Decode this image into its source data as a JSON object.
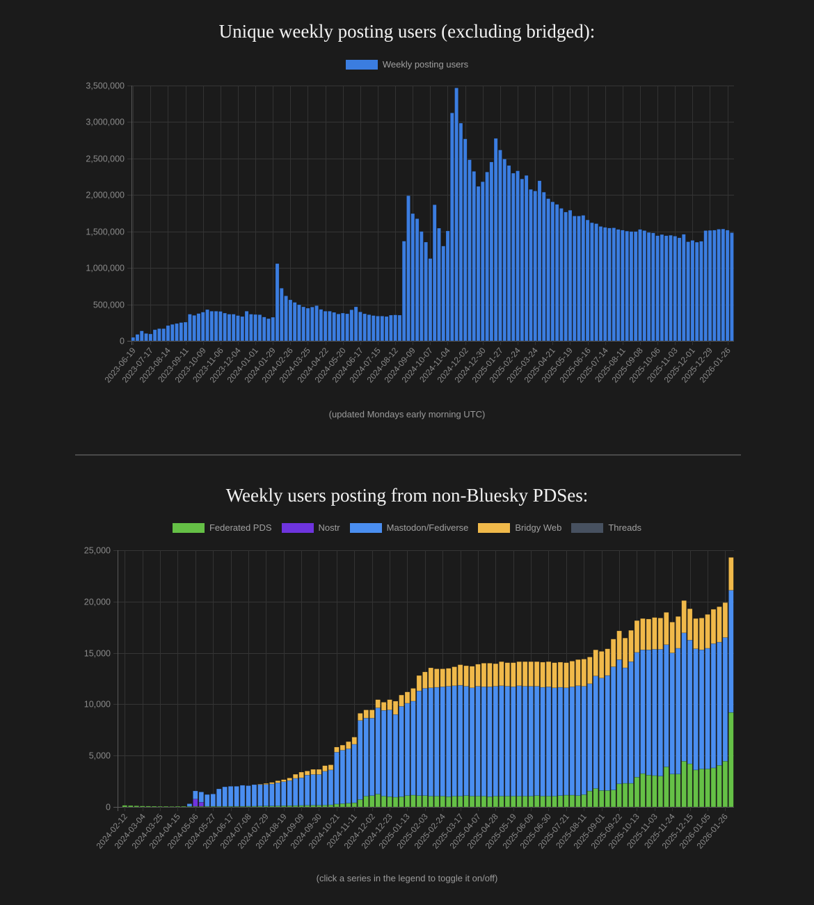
{
  "chart_data": [
    {
      "type": "bar",
      "title": "Unique weekly posting users (excluding bridged):",
      "caption": "(updated Mondays early morning UTC)",
      "xlabel": "",
      "ylabel": "",
      "ylim": [
        0,
        3500000
      ],
      "yticks": [
        "0",
        "500,000",
        "1,000,000",
        "1,500,000",
        "2,000,000",
        "2,500,000",
        "3,000,000",
        "3,500,000"
      ],
      "ytick_values": [
        0,
        500000,
        1000000,
        1500000,
        2000000,
        2500000,
        3000000,
        3500000
      ],
      "grid": true,
      "legend_position": "top-center",
      "x_start": "2023-06-19",
      "x_step_weeks": 1,
      "x_tick_every": 4,
      "xtick_labels": [
        "2023-06-19",
        "2023-07-17",
        "2023-08-14",
        "2023-09-11",
        "2023-10-09",
        "2023-11-06",
        "2023-12-04",
        "2024-01-01",
        "2024-01-29",
        "2024-02-26",
        "2024-03-25",
        "2024-04-22",
        "2024-05-20",
        "2024-06-17",
        "2024-07-15",
        "2024-08-12",
        "2024-09-09",
        "2024-10-07",
        "2024-11-04",
        "2024-12-02",
        "2024-12-30",
        "2025-01-27",
        "2025-02-24",
        "2025-03-24",
        "2025-04-21",
        "2025-05-19",
        "2025-06-16",
        "2025-07-14",
        "2025-08-11",
        "2025-09-08",
        "2025-10-06",
        "2025-11-03",
        "2025-12-01",
        "2025-12-29",
        "2026-01-26"
      ],
      "series": [
        {
          "name": "Weekly posting users",
          "color": "#3b7de0",
          "values": [
            48000,
            89000,
            137000,
            102000,
            95000,
            153000,
            168000,
            168000,
            210000,
            226000,
            238000,
            251000,
            257000,
            366000,
            350000,
            375000,
            394000,
            429000,
            407000,
            407000,
            404000,
            381000,
            366000,
            366000,
            347000,
            334000,
            407000,
            366000,
            362000,
            359000,
            327000,
            305000,
            324000,
            1059000,
            722000,
            617000,
            563000,
            528000,
            496000,
            467000,
            448000,
            464000,
            483000,
            432000,
            407000,
            407000,
            391000,
            369000,
            381000,
            372000,
            426000,
            467000,
            397000,
            372000,
            359000,
            347000,
            340000,
            340000,
            334000,
            353000,
            356000,
            353000,
            1367000,
            1990000,
            1745000,
            1675000,
            1500000,
            1354000,
            1129000,
            1866000,
            1545000,
            1300000,
            1507000,
            3125000,
            3468000,
            2985000,
            2769000,
            2483000,
            2324000,
            2118000,
            2182000,
            2315000,
            2452000,
            2776000,
            2617000,
            2493000,
            2404000,
            2299000,
            2331000,
            2220000,
            2268000,
            2077000,
            2055000,
            2195000,
            2039000,
            1950000,
            1906000,
            1871000,
            1817000,
            1766000,
            1791000,
            1712000,
            1712000,
            1721000,
            1658000,
            1620000,
            1607000,
            1569000,
            1556000,
            1547000,
            1550000,
            1528000,
            1518000,
            1505000,
            1499000,
            1499000,
            1528000,
            1512000,
            1486000,
            1480000,
            1442000,
            1458000,
            1442000,
            1448000,
            1436000,
            1413000,
            1461000,
            1359000,
            1378000,
            1353000,
            1365000,
            1512000,
            1515000,
            1518000,
            1531000,
            1534000,
            1518000,
            1483000
          ]
        }
      ]
    },
    {
      "type": "bar",
      "stacked": true,
      "title": "Weekly users posting from non-Bluesky PDSes:",
      "caption": "(click a series in the legend to toggle it on/off)",
      "xlabel": "",
      "ylabel": "",
      "ylim": [
        0,
        25000
      ],
      "yticks": [
        "0",
        "5,000",
        "10,000",
        "15,000",
        "20,000",
        "25,000"
      ],
      "ytick_values": [
        0,
        5000,
        10000,
        15000,
        20000,
        25000
      ],
      "grid": true,
      "legend_position": "top-center",
      "x_start": "2024-02-12",
      "x_step_weeks": 1,
      "x_tick_every": 3,
      "xtick_labels": [
        "2024-02-12",
        "2024-03-04",
        "2024-03-25",
        "2024-04-15",
        "2024-05-06",
        "2024-05-27",
        "2024-06-17",
        "2024-07-08",
        "2024-07-29",
        "2024-08-19",
        "2024-09-09",
        "2024-09-30",
        "2024-10-21",
        "2024-11-11",
        "2024-12-02",
        "2024-12-23",
        "2025-01-13",
        "2025-02-03",
        "2025-02-24",
        "2025-03-17",
        "2025-04-07",
        "2025-04-28",
        "2025-05-19",
        "2025-06-09",
        "2025-06-30",
        "2025-07-21",
        "2025-08-11",
        "2025-09-01",
        "2025-09-22",
        "2025-10-13",
        "2025-11-03",
        "2025-11-24",
        "2025-12-15",
        "2026-01-05",
        "2026-01-26"
      ],
      "series": [
        {
          "name": "Federated PDS",
          "color": "#65c046",
          "values": [
            150,
            130,
            110,
            90,
            80,
            70,
            60,
            60,
            50,
            60,
            60,
            60,
            60,
            60,
            60,
            60,
            60,
            60,
            60,
            60,
            60,
            70,
            70,
            80,
            90,
            90,
            100,
            110,
            120,
            130,
            140,
            150,
            160,
            160,
            170,
            200,
            280,
            320,
            360,
            400,
            720,
            1050,
            1100,
            1250,
            1050,
            1000,
            950,
            1000,
            1100,
            1150,
            1100,
            1100,
            1050,
            1050,
            1050,
            1000,
            1050,
            1050,
            1100,
            1050,
            1050,
            1050,
            1000,
            1050,
            1050,
            1050,
            1050,
            1050,
            1050,
            1050,
            1100,
            1050,
            1050,
            1050,
            1100,
            1150,
            1150,
            1100,
            1200,
            1550,
            1800,
            1600,
            1600,
            1650,
            2250,
            2300,
            2300,
            2900,
            3250,
            3100,
            3050,
            3000,
            3900,
            3200,
            3200,
            4450,
            4200,
            3600,
            3700,
            3700,
            3800,
            4050,
            4450,
            9200
          ]
        },
        {
          "name": "Nostr",
          "color": "#6e34de",
          "values": [
            0,
            0,
            0,
            0,
            0,
            0,
            0,
            0,
            0,
            0,
            0,
            0,
            700,
            400,
            0,
            0,
            0,
            0,
            0,
            0,
            0,
            0,
            0,
            0,
            0,
            0,
            0,
            0,
            0,
            0,
            0,
            0,
            0,
            0,
            0,
            0,
            0,
            0,
            0,
            0,
            0,
            0,
            0,
            0,
            0,
            0,
            0,
            0,
            0,
            0,
            0,
            0,
            0,
            0,
            0,
            0,
            0,
            0,
            0,
            0,
            0,
            0,
            0,
            0,
            0,
            0,
            0,
            0,
            0,
            0,
            0,
            0,
            0,
            0,
            0,
            0,
            0,
            0,
            0,
            0,
            0,
            0,
            0,
            0,
            0,
            0,
            0,
            0,
            0,
            0,
            0,
            0,
            0,
            0,
            0,
            0,
            0,
            0,
            0,
            0,
            0,
            0,
            0,
            0
          ]
        },
        {
          "name": "Mastodon/Fediverse",
          "color": "#4a8ef0",
          "values": [
            0,
            0,
            0,
            0,
            0,
            0,
            0,
            0,
            0,
            0,
            0,
            250,
            800,
            1000,
            1150,
            1200,
            1700,
            1900,
            1950,
            1950,
            2050,
            2000,
            2100,
            2100,
            2100,
            2150,
            2250,
            2350,
            2450,
            2650,
            2700,
            2950,
            3000,
            3000,
            3300,
            3400,
            5050,
            5200,
            5300,
            5700,
            7700,
            7600,
            7550,
            8400,
            8350,
            8450,
            8050,
            8800,
            9000,
            9150,
            10200,
            10450,
            10550,
            10600,
            10650,
            10750,
            10750,
            10800,
            10650,
            10550,
            10700,
            10650,
            10700,
            10700,
            10750,
            10700,
            10650,
            10750,
            10700,
            10700,
            10650,
            10600,
            10650,
            10550,
            10550,
            10450,
            10550,
            10700,
            10550,
            10450,
            10950,
            10950,
            11200,
            12000,
            12100,
            11250,
            11850,
            12150,
            12050,
            12200,
            12300,
            12350,
            11900,
            11800,
            12250,
            12500,
            12050,
            11800,
            11600,
            11750,
            12100,
            12000,
            12050,
            11900
          ]
        },
        {
          "name": "Bridgy Web",
          "color": "#f0b94a",
          "values": [
            0,
            0,
            0,
            0,
            0,
            0,
            0,
            0,
            0,
            0,
            0,
            0,
            0,
            0,
            0,
            0,
            0,
            0,
            0,
            0,
            0,
            0,
            0,
            50,
            100,
            150,
            200,
            200,
            250,
            400,
            550,
            400,
            500,
            500,
            550,
            500,
            500,
            500,
            700,
            700,
            700,
            800,
            800,
            800,
            800,
            1000,
            1300,
            1100,
            1100,
            1250,
            1500,
            1600,
            1950,
            1800,
            1750,
            1750,
            1850,
            2000,
            2000,
            2100,
            2150,
            2300,
            2300,
            2200,
            2350,
            2300,
            2350,
            2350,
            2400,
            2400,
            2400,
            2450,
            2450,
            2450,
            2450,
            2450,
            2500,
            2550,
            2650,
            2600,
            2550,
            2600,
            2600,
            2700,
            2800,
            2900,
            3050,
            3100,
            3050,
            3000,
            3100,
            3050,
            3150,
            3000,
            3100,
            3150,
            3050,
            2950,
            3100,
            3300,
            3350,
            3450,
            3400,
            3200
          ]
        },
        {
          "name": "Threads",
          "color": "#475160",
          "values": [
            0,
            0,
            0,
            0,
            0,
            0,
            0,
            0,
            0,
            0,
            0,
            0,
            0,
            0,
            0,
            0,
            0,
            0,
            0,
            0,
            0,
            0,
            0,
            0,
            0,
            0,
            0,
            0,
            0,
            0,
            0,
            0,
            0,
            0,
            0,
            0,
            0,
            0,
            0,
            0,
            0,
            0,
            0,
            0,
            0,
            0,
            0,
            0,
            0,
            0,
            0,
            0,
            0,
            0,
            0,
            0,
            0,
            0,
            0,
            0,
            0,
            0,
            0,
            0,
            0,
            0,
            0,
            0,
            0,
            0,
            0,
            0,
            0,
            0,
            0,
            0,
            0,
            0,
            0,
            0,
            0,
            0,
            0,
            0,
            0,
            0,
            0,
            0,
            0,
            0,
            0,
            0,
            0,
            0,
            0,
            0,
            0,
            0,
            0,
            0,
            0,
            0,
            0,
            0
          ]
        }
      ]
    }
  ]
}
